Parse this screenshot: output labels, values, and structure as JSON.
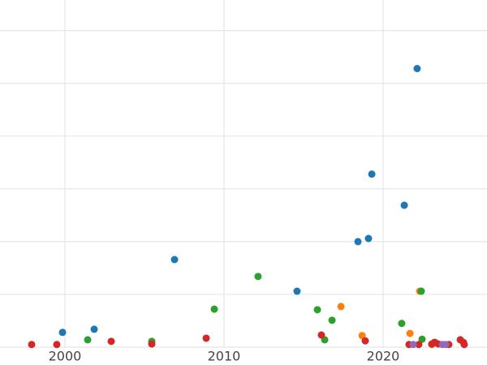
{
  "chart_data": {
    "type": "scatter",
    "xlim": [
      1995.92,
      2026.53
    ],
    "ylim": [
      0,
      6.58
    ],
    "xticks": [
      2000,
      2010,
      2020
    ],
    "yticks": [
      0,
      1,
      2,
      3,
      4,
      5,
      6
    ],
    "grid": true,
    "series": [
      {
        "color": "#1f77b4",
        "x": [
          1999.85,
          2001.84,
          2006.89,
          2014.59,
          2018.42,
          2019.08,
          2019.29,
          2021.33,
          2022.14
        ],
        "values": [
          0.28,
          0.34,
          1.66,
          1.06,
          2.0,
          2.06,
          3.28,
          2.69,
          5.28
        ]
      },
      {
        "color": "#ff7f0e",
        "x": [
          2017.35,
          2018.68,
          2021.69,
          2022.3,
          2023.06
        ],
        "values": [
          0.77,
          0.22,
          0.26,
          1.06,
          0.05
        ]
      },
      {
        "color": "#2ca02c",
        "x": [
          2001.43,
          2005.46,
          2009.39,
          2012.14,
          2015.87,
          2016.33,
          2016.79,
          2021.17,
          2022.4,
          2022.45,
          2023.27
        ],
        "values": [
          0.14,
          0.11,
          0.72,
          1.34,
          0.71,
          0.14,
          0.51,
          0.45,
          1.06,
          0.15,
          0.09
        ]
      },
      {
        "color": "#d62728",
        "x": [
          1997.91,
          1999.49,
          2002.91,
          2005.46,
          2008.88,
          2016.12,
          2018.88,
          2021.63,
          2022.24,
          2023.06,
          2023.22,
          2023.47,
          2024.13,
          2024.85,
          2025.05,
          2025.1
        ],
        "values": [
          0.05,
          0.05,
          0.11,
          0.06,
          0.17,
          0.23,
          0.12,
          0.05,
          0.05,
          0.06,
          0.09,
          0.06,
          0.05,
          0.14,
          0.09,
          0.05
        ]
      },
      {
        "color": "#9467bd",
        "x": [
          2021.89,
          2023.73,
          2023.93
        ],
        "values": [
          0.05,
          0.05,
          0.05
        ]
      }
    ]
  }
}
